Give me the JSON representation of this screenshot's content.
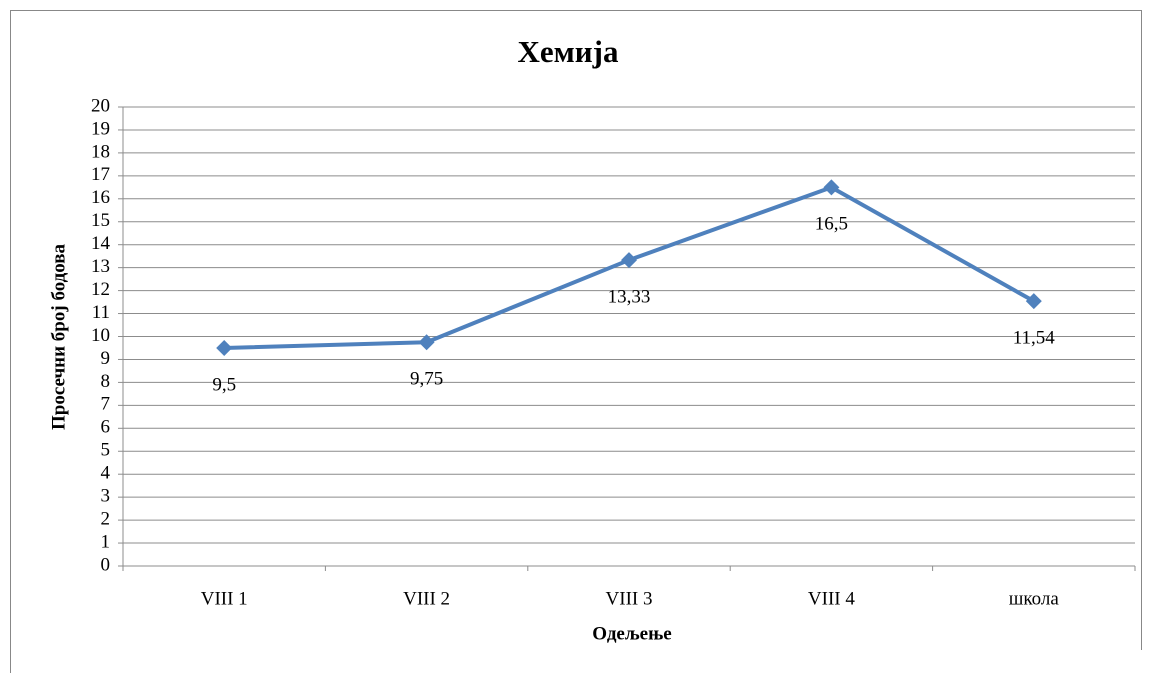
{
  "chart_data": {
    "type": "line",
    "title": "Хемија",
    "x_label": "Одељење",
    "y_label": "Просечни број бодова",
    "categories": [
      "VIII 1",
      "VIII 2",
      "VIII 3",
      "VIII 4",
      "школа"
    ],
    "values": [
      9.5,
      9.75,
      13.33,
      16.5,
      11.54
    ],
    "value_labels": [
      "9,5",
      "9,75",
      "13,33",
      "16,5",
      "11,54"
    ],
    "color": "#4f81bd",
    "ylim": [
      0,
      20
    ],
    "yticks": [
      0,
      1,
      2,
      3,
      4,
      5,
      6,
      7,
      8,
      9,
      10,
      11,
      12,
      13,
      14,
      15,
      16,
      17,
      18,
      19,
      20
    ],
    "grid": true
  }
}
